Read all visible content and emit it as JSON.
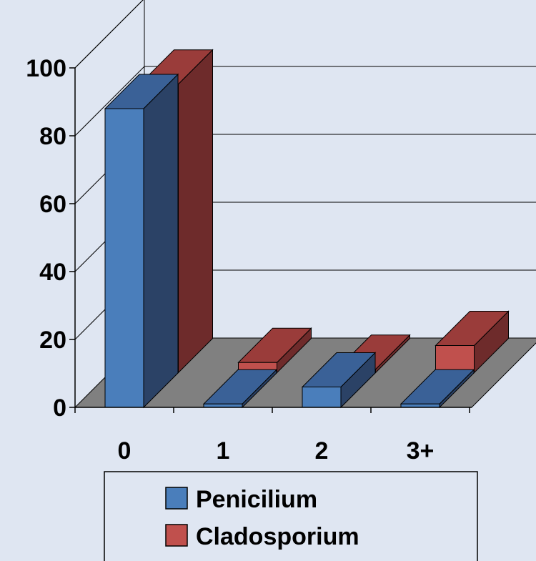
{
  "chart_data": {
    "type": "bar",
    "style": "3d-clustered-columns",
    "categories": [
      "0",
      "1",
      "2",
      "3+"
    ],
    "series": [
      {
        "name": "Penicilium",
        "values": [
          88,
          1,
          6,
          1
        ],
        "color": "#4a7ebb",
        "dark": "#2b4266",
        "top": "#3a6197"
      },
      {
        "name": "Cladosporium",
        "values": [
          85,
          3,
          1,
          8
        ],
        "color": "#c0504d",
        "dark": "#6e2b2b",
        "top": "#9a3c3a"
      }
    ],
    "yticks": [
      0,
      20,
      40,
      60,
      80,
      100
    ],
    "ylim": [
      0,
      100
    ],
    "grid": true,
    "legend": "bottom",
    "colors": {
      "background": "#dfe6f2",
      "floor": "#808080",
      "gridline": "#000000"
    }
  }
}
